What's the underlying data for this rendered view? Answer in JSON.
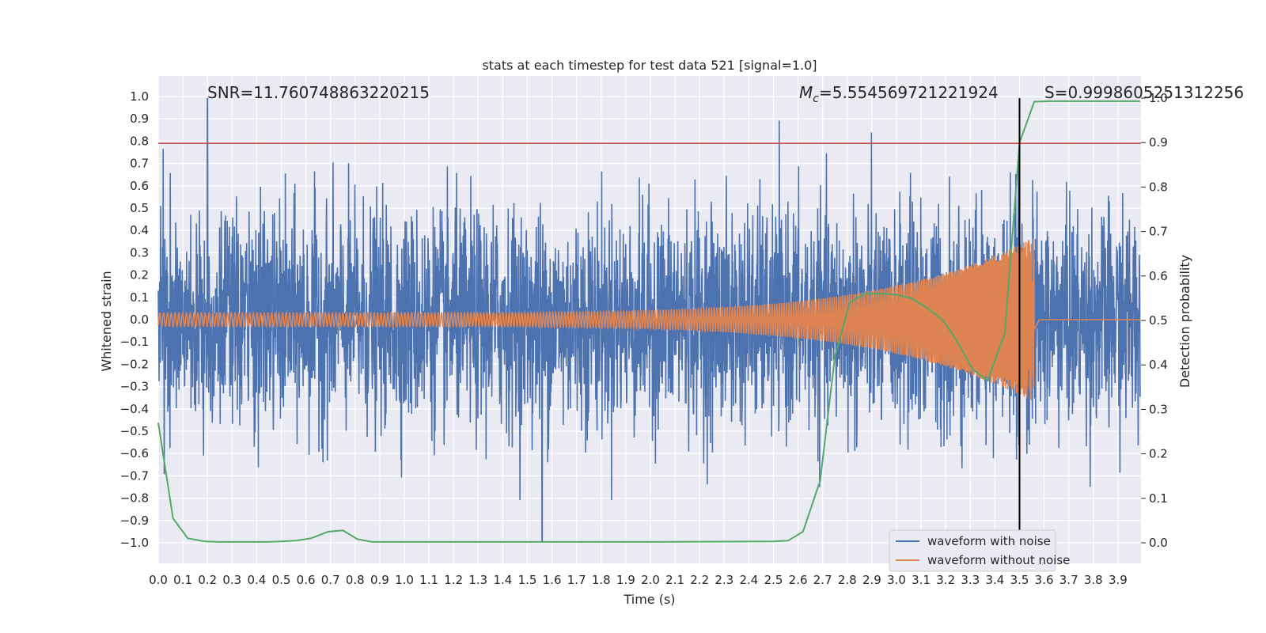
{
  "chart_data": {
    "type": "line",
    "title": "stats at each timestep for test data 521 [signal=1.0]",
    "xlabel": "Time (s)",
    "ylabel": "Whitened strain",
    "ylabel_right": "Detection probability",
    "xlim": [
      0.0,
      4.0
    ],
    "ylim": [
      -1.1,
      1.1
    ],
    "ylim_right": [
      -0.05,
      1.0
    ],
    "x_ticks": [
      "0.0",
      "0.1",
      "0.2",
      "0.3",
      "0.4",
      "0.5",
      "0.6",
      "0.7",
      "0.8",
      "0.9",
      "1.0",
      "1.1",
      "1.2",
      "1.3",
      "1.4",
      "1.5",
      "1.6",
      "1.7",
      "1.8",
      "1.9",
      "2.0",
      "2.1",
      "2.2",
      "2.3",
      "2.4",
      "2.5",
      "2.6",
      "2.7",
      "2.8",
      "2.9",
      "3.0",
      "3.1",
      "3.2",
      "3.3",
      "3.4",
      "3.5",
      "3.6",
      "3.7",
      "3.8",
      "3.9"
    ],
    "y_ticks": [
      "1.0",
      "0.9",
      "0.8",
      "0.7",
      "0.6",
      "0.5",
      "0.4",
      "0.3",
      "0.2",
      "0.1",
      "0.0",
      "−0.1",
      "−0.2",
      "−0.3",
      "−0.4",
      "−0.5",
      "−0.6",
      "−0.7",
      "−0.8",
      "−0.9",
      "−1.0"
    ],
    "y_ticks_right": [
      "1.0",
      "0.9",
      "0.8",
      "0.7",
      "0.6",
      "0.5",
      "0.4",
      "0.3",
      "0.2",
      "0.1",
      "0.0"
    ],
    "grid": true,
    "legend_position": "lower-right",
    "annotations": {
      "snr": "SNR=11.760748863220215",
      "mc_symbol": "M",
      "mc_sub": "c",
      "mc_value": "=5.554569721221924",
      "s": "S=0.9998605251312256"
    },
    "threshold_line": {
      "y": 0.79,
      "color": "#c44e52"
    },
    "marker_line": {
      "x": 3.5,
      "color": "#000000"
    },
    "series": [
      {
        "name": "waveform with noise",
        "color": "#4c72b0",
        "axis": "left",
        "description_peaks": {
          "peak_x": 0.2,
          "peak_y": 0.99,
          "trough_x": 1.56,
          "trough_y": -0.99
        }
      },
      {
        "name": "waveform without noise",
        "color": "#dd8452",
        "axis": "left",
        "merger_x": 3.56,
        "max_amplitude": 0.38
      },
      {
        "color": "#55a868",
        "axis": "right",
        "x": [
          0.0,
          0.06,
          0.12,
          0.19,
          0.25,
          0.31,
          0.37,
          0.44,
          0.5,
          0.56,
          0.62,
          0.69,
          0.75,
          0.81,
          0.87,
          0.94,
          1.0,
          1.5,
          2.0,
          2.5,
          2.56,
          2.62,
          2.69,
          2.75,
          2.81,
          2.87,
          2.94,
          3.0,
          3.06,
          3.12,
          3.19,
          3.25,
          3.31,
          3.37,
          3.44,
          3.5,
          3.56,
          3.62,
          3.7,
          3.99
        ],
        "y": [
          0.27,
          0.055,
          0.01,
          0.003,
          0.002,
          0.002,
          0.002,
          0.002,
          0.003,
          0.005,
          0.01,
          0.025,
          0.028,
          0.008,
          0.002,
          0.002,
          0.002,
          0.002,
          0.002,
          0.003,
          0.005,
          0.025,
          0.14,
          0.42,
          0.54,
          0.56,
          0.56,
          0.558,
          0.55,
          0.53,
          0.5,
          0.45,
          0.39,
          0.365,
          0.47,
          0.9,
          0.992,
          0.993,
          0.993,
          0.993
        ]
      }
    ]
  }
}
